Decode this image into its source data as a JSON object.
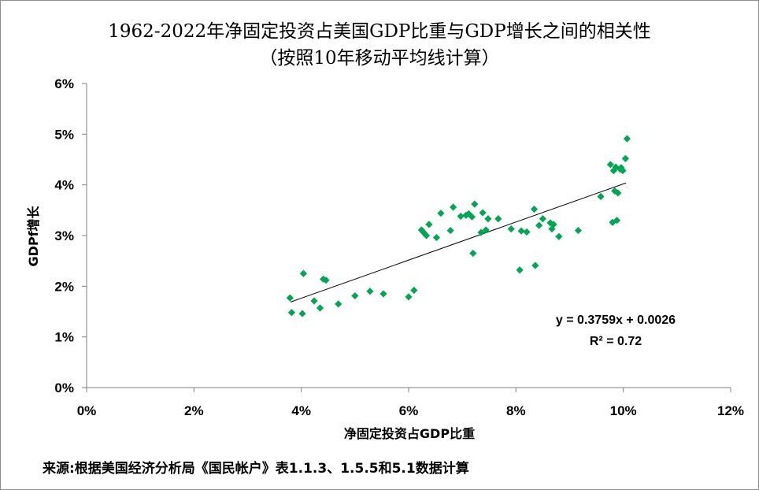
{
  "chart_data": {
    "type": "scatter",
    "title": "1962-2022年净固定投资占美国GDP比重与GDP增长之间的相关性",
    "subtitle": "（按照10年移动平均线计算）",
    "xlabel": "净固定投资占GDP比重",
    "ylabel": "GDPf增长",
    "xlim": [
      0,
      0.12
    ],
    "ylim": [
      0,
      0.06
    ],
    "x_ticks": [
      "0%",
      "2%",
      "4%",
      "6%",
      "8%",
      "10%",
      "12%"
    ],
    "y_ticks": [
      "0%",
      "1%",
      "2%",
      "3%",
      "4%",
      "5%",
      "6%"
    ],
    "marker_color": "#00a651",
    "trendline": {
      "slope": 0.3759,
      "intercept": 0.0026,
      "x_range": [
        0.038,
        0.1005
      ]
    },
    "equation": "y = 0.3759x + 0.0026",
    "r_squared": "R² = 0.72",
    "points": [
      [
        0.0379,
        0.0177
      ],
      [
        0.0382,
        0.0148
      ],
      [
        0.0402,
        0.0146
      ],
      [
        0.0404,
        0.0225
      ],
      [
        0.0424,
        0.0171
      ],
      [
        0.0435,
        0.0157
      ],
      [
        0.0441,
        0.0214
      ],
      [
        0.0446,
        0.0212
      ],
      [
        0.0469,
        0.0165
      ],
      [
        0.05,
        0.0181
      ],
      [
        0.0528,
        0.019
      ],
      [
        0.0553,
        0.0185
      ],
      [
        0.06,
        0.0179
      ],
      [
        0.061,
        0.0192
      ],
      [
        0.0624,
        0.0311
      ],
      [
        0.0628,
        0.0306
      ],
      [
        0.0633,
        0.03
      ],
      [
        0.0638,
        0.0322
      ],
      [
        0.0652,
        0.0296
      ],
      [
        0.066,
        0.0344
      ],
      [
        0.0678,
        0.031
      ],
      [
        0.0683,
        0.0356
      ],
      [
        0.0697,
        0.0338
      ],
      [
        0.0707,
        0.034
      ],
      [
        0.0712,
        0.0343
      ],
      [
        0.0718,
        0.0337
      ],
      [
        0.072,
        0.0265
      ],
      [
        0.0723,
        0.0362
      ],
      [
        0.0735,
        0.0306
      ],
      [
        0.0738,
        0.0345
      ],
      [
        0.0744,
        0.0311
      ],
      [
        0.0748,
        0.0333
      ],
      [
        0.0767,
        0.0333
      ],
      [
        0.0791,
        0.0313
      ],
      [
        0.0807,
        0.0232
      ],
      [
        0.081,
        0.0309
      ],
      [
        0.082,
        0.0307
      ],
      [
        0.0834,
        0.0352
      ],
      [
        0.0836,
        0.0241
      ],
      [
        0.0843,
        0.032
      ],
      [
        0.085,
        0.0333
      ],
      [
        0.0864,
        0.0325
      ],
      [
        0.0867,
        0.0313
      ],
      [
        0.087,
        0.0322
      ],
      [
        0.088,
        0.0298
      ],
      [
        0.0916,
        0.031
      ],
      [
        0.0958,
        0.0377
      ],
      [
        0.0976,
        0.044
      ],
      [
        0.098,
        0.0326
      ],
      [
        0.0982,
        0.0428
      ],
      [
        0.0984,
        0.0388
      ],
      [
        0.0986,
        0.0435
      ],
      [
        0.0988,
        0.033
      ],
      [
        0.099,
        0.0384
      ],
      [
        0.0994,
        0.0431
      ],
      [
        0.0996,
        0.0434
      ],
      [
        0.0999,
        0.0428
      ],
      [
        0.1004,
        0.0452
      ],
      [
        0.1007,
        0.0491
      ]
    ]
  },
  "source_note": "来源:根据美国经济分析局《国民帐户》表1.1.3、1.5.5和5.1数据计算"
}
